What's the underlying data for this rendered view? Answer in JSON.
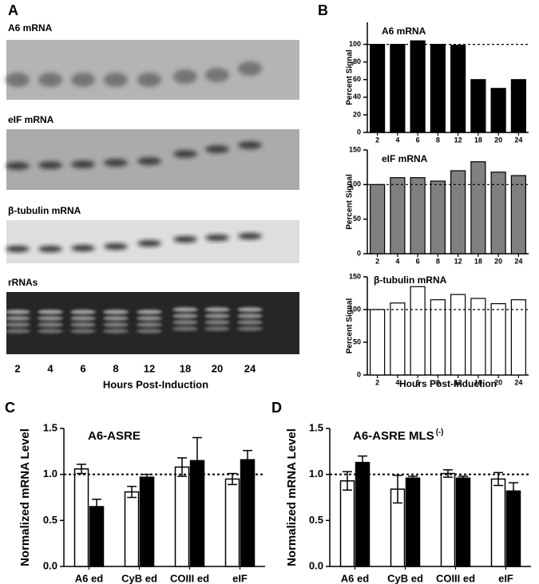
{
  "panel_labels": [
    "A",
    "B",
    "C",
    "D"
  ],
  "blots": {
    "labels": [
      "A6 mRNA",
      "eIF mRNA",
      "β-tubulin mRNA",
      "rRNAs"
    ],
    "lanes": [
      "2",
      "4",
      "6",
      "8",
      "12",
      "18",
      "20",
      "24"
    ],
    "x_label": "Hours Post-Induction"
  },
  "chart_data": [
    {
      "type": "bar",
      "title": "A6 mRNA",
      "y_label": "Percent Signal",
      "categories": [
        "2",
        "4",
        "6",
        "8",
        "12",
        "18",
        "20",
        "24"
      ],
      "values": [
        100,
        100,
        104,
        100,
        99,
        60,
        50,
        60
      ],
      "color": "#000000",
      "ylim": [
        0,
        125
      ],
      "yticks": [
        0,
        20,
        40,
        60,
        80,
        100
      ],
      "reference_line": 100
    },
    {
      "type": "bar",
      "title": "eIF mRNA",
      "y_label": "Percent Signal",
      "categories": [
        "2",
        "4",
        "6",
        "8",
        "12",
        "18",
        "20",
        "24"
      ],
      "values": [
        100,
        110,
        110,
        105,
        120,
        133,
        118,
        113
      ],
      "color": "#808080",
      "ylim": [
        0,
        150
      ],
      "yticks": [
        0,
        50,
        100,
        150
      ],
      "reference_line": 100
    },
    {
      "type": "bar",
      "title": "β-tubulin mRNA",
      "y_label": "Percent Signal",
      "x_label": "Hours Post-Induction",
      "categories": [
        "2",
        "4",
        "6",
        "8",
        "12",
        "18",
        "20",
        "24"
      ],
      "values": [
        100,
        110,
        135,
        115,
        123,
        117,
        109,
        115
      ],
      "color": "#ffffff",
      "ylim": [
        0,
        150
      ],
      "yticks": [
        0,
        50,
        100,
        150
      ],
      "reference_line": 100
    },
    {
      "type": "grouped_bar",
      "title": "A6-ASRE",
      "y_label": "Normalized mRNA Level",
      "categories": [
        "A6 ed",
        "CyB ed",
        "COIII ed",
        "eIF"
      ],
      "series": [
        {
          "color": "#ffffff",
          "values": [
            1.06,
            0.81,
            1.08,
            0.95
          ],
          "errors": [
            0.05,
            0.06,
            0.1,
            0.06
          ]
        },
        {
          "color": "#000000",
          "values": [
            0.65,
            0.97,
            1.15,
            1.16
          ],
          "errors": [
            0.08,
            0.03,
            0.25,
            0.1
          ]
        }
      ],
      "ylim": [
        0,
        1.5
      ],
      "yticks": [
        {
          "value": 0,
          "label": "0.0"
        },
        0.5,
        {
          "value": 1,
          "label": "1.0"
        },
        1.5
      ],
      "reference_line": 1
    },
    {
      "type": "grouped_bar",
      "title": "A6-ASRE MLS",
      "title_superscript": "(-)",
      "y_label": "Normalized mRNA Level",
      "categories": [
        "A6 ed",
        "CyB ed",
        "COIII ed",
        "eIF"
      ],
      "series": [
        {
          "color": "#ffffff",
          "values": [
            0.93,
            0.84,
            1.01,
            0.95
          ],
          "errors": [
            0.1,
            0.15,
            0.04,
            0.07
          ]
        },
        {
          "color": "#000000",
          "values": [
            1.13,
            0.96,
            0.96,
            0.82
          ],
          "errors": [
            0.07,
            0.02,
            0.02,
            0.09
          ]
        }
      ],
      "ylim": [
        0,
        1.5
      ],
      "yticks": [
        {
          "value": 0,
          "label": "0.0"
        },
        0.5,
        {
          "value": 1,
          "label": "1.0"
        },
        1.5
      ],
      "reference_line": 1
    }
  ]
}
